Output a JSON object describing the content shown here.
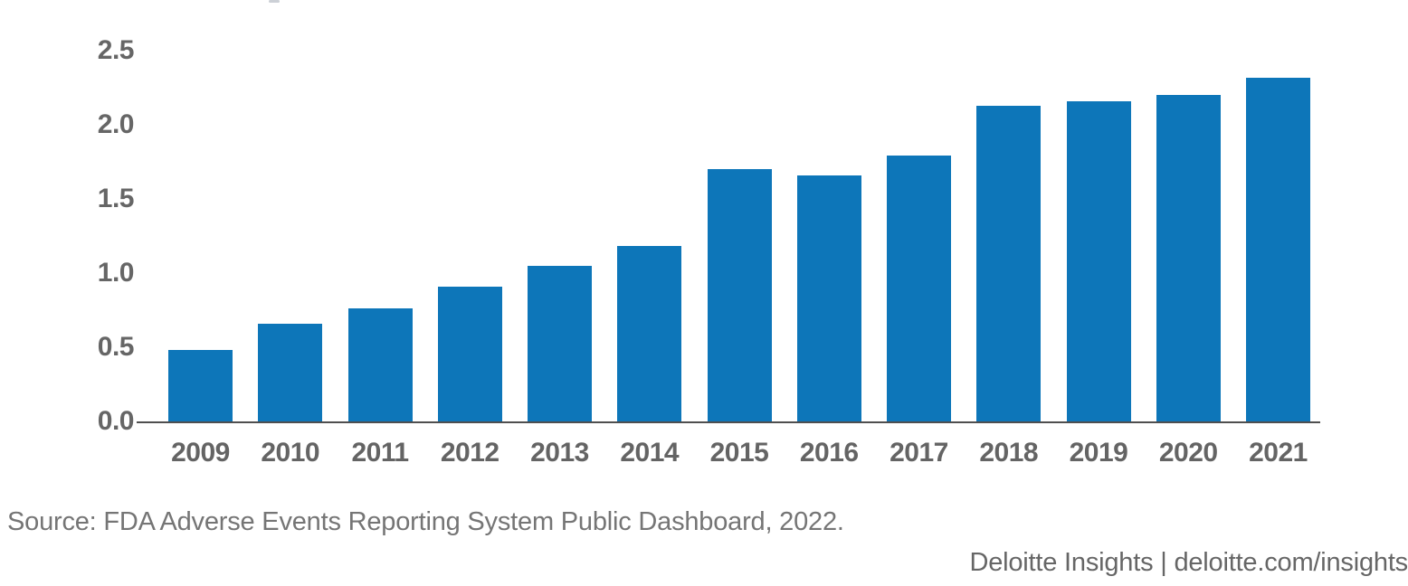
{
  "chart_data": {
    "type": "bar",
    "title": "",
    "xlabel": "",
    "ylabel": "",
    "categories": [
      "2009",
      "2010",
      "2011",
      "2012",
      "2013",
      "2014",
      "2015",
      "2016",
      "2017",
      "2018",
      "2019",
      "2020",
      "2021"
    ],
    "values": [
      0.48,
      0.66,
      0.76,
      0.91,
      1.05,
      1.18,
      1.7,
      1.66,
      1.79,
      2.13,
      2.16,
      2.2,
      2.32
    ],
    "ylim": [
      0,
      2.5
    ],
    "ytick_labels": [
      "0.0",
      "0.5",
      "1.0",
      "1.5",
      "2.0",
      "2.5"
    ],
    "grid": false,
    "legend": "none",
    "bar_color": "#0d76b9"
  },
  "footer": {
    "source": "Source: FDA Adverse Events Reporting System Public Dashboard, 2022.",
    "brand": "Deloitte Insights | deloitte.com/insights"
  },
  "colors": {
    "bar": "#0d76b9",
    "axis_line": "#4f4f4f",
    "tick_label": "#666666",
    "source_text": "#757575",
    "brand_text": "#666666",
    "background": "#ffffff"
  }
}
